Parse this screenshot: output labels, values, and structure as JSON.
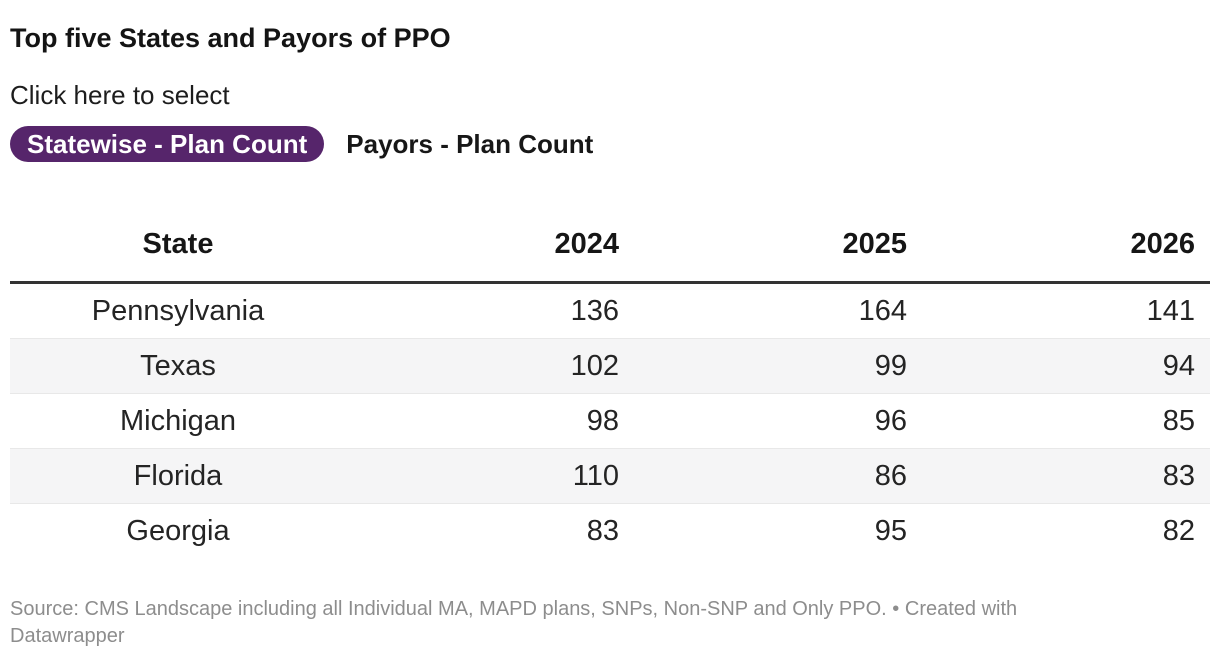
{
  "header": {
    "title": "Top five States and Payors of PPO",
    "description": "Click here to select"
  },
  "tabs": [
    {
      "label": "Statewise - Plan Count",
      "active": true
    },
    {
      "label": "Payors - Plan Count",
      "active": false
    }
  ],
  "colors": {
    "active_tab_bg": "#56256b",
    "active_tab_text": "#ffffff",
    "row_stripe": "#f5f5f6",
    "header_rule": "#333333",
    "footer_text": "#8d8d8d"
  },
  "chart_data": {
    "type": "table",
    "title": "Top five States and Payors of PPO",
    "columns": [
      "State",
      "2024",
      "2025",
      "2026"
    ],
    "rows": [
      [
        "Pennsylvania",
        136,
        164,
        141
      ],
      [
        "Texas",
        102,
        99,
        94
      ],
      [
        "Michigan",
        98,
        96,
        85
      ],
      [
        "Florida",
        110,
        86,
        83
      ],
      [
        "Georgia",
        83,
        95,
        82
      ]
    ],
    "layout_hints": {
      "first_column_align": "center",
      "year_columns_align": "right",
      "zebra_striping": true
    }
  },
  "footer": {
    "source_prefix": "Source:",
    "source_text": "CMS Landscape including all Individual MA, MAPD plans, SNPs, Non-SNP and Only PPO.",
    "separator": "•",
    "attribution": "Created with",
    "attribution_link": "Datawrapper"
  }
}
